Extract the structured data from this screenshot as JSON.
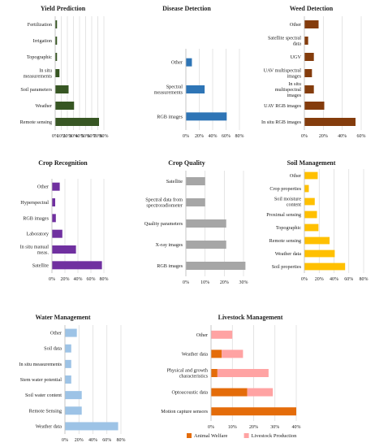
{
  "chart_data": [
    {
      "type": "bar",
      "title": "Yield Prediction",
      "categories": [
        "Fertilization",
        "Irrigation",
        "Topographic",
        "In situ measurements",
        "Soil parameters",
        "Weather",
        "Remote sensing"
      ],
      "values": [
        3,
        3,
        3,
        7,
        22,
        31,
        72
      ],
      "xlim": [
        0,
        80
      ],
      "ticks": [
        "0%",
        "10%",
        "20%",
        "30%",
        "40%",
        "50%",
        "60%",
        "70%",
        "80%"
      ],
      "orientation": "horizontal",
      "color": "#375623"
    },
    {
      "type": "bar",
      "title": "Disease Detection",
      "categories": [
        "Other",
        "Spectral measurements",
        "RGB images"
      ],
      "values": [
        9,
        28,
        61
      ],
      "xlim": [
        0,
        80
      ],
      "ticks": [
        "0%",
        "20%",
        "40%",
        "60%",
        "80%"
      ],
      "orientation": "horizontal",
      "color": "#2e75b6"
    },
    {
      "type": "bar",
      "title": "Weed Detection",
      "categories": [
        "Other",
        "Satellite spectral data",
        "UGV",
        "UAV multispectral images",
        "In situ  multispectral images",
        "UAV RGB images",
        "In situ RGB images"
      ],
      "values": [
        15,
        4,
        10,
        8,
        10,
        21,
        54
      ],
      "xlim": [
        0,
        60
      ],
      "ticks": [
        "0%",
        "20%",
        "40%",
        "60%"
      ],
      "orientation": "horizontal",
      "color": "#843c0c"
    },
    {
      "type": "bar",
      "title": "Crop Recognition",
      "categories": [
        "Other",
        "Hyperspectral",
        "RGB images",
        "Laboratory",
        "In situ manual meas.",
        "Satellite"
      ],
      "values": [
        12,
        5,
        6,
        16,
        37,
        77
      ],
      "xlim": [
        0,
        80
      ],
      "ticks": [
        "0%",
        "20%",
        "40%",
        "60%",
        "80%"
      ],
      "orientation": "horizontal",
      "color": "#7030a0"
    },
    {
      "type": "bar",
      "title": "Crop Quality",
      "categories": [
        "Satellite",
        "Spectral data from spectroradiometer",
        "Quality parameters",
        "X-ray images",
        "RGB images"
      ],
      "values": [
        10,
        10,
        21,
        21,
        31
      ],
      "xlim": [
        0,
        30
      ],
      "ticks": [
        "0%",
        "10%",
        "20%",
        "30%"
      ],
      "orientation": "horizontal",
      "color": "#a6a6a6"
    },
    {
      "type": "bar",
      "title": "Soil Management",
      "categories": [
        "Other",
        "Crop properties",
        "Soil moisture content",
        "Proximal sensing",
        "Topographic",
        "Remote sensing",
        "Weather data",
        "Soil properties"
      ],
      "values": [
        18,
        6,
        14,
        17,
        19,
        34,
        41,
        55
      ],
      "xlim": [
        0,
        80
      ],
      "ticks": [
        "0%",
        "20%",
        "40%",
        "60%",
        "80%"
      ],
      "orientation": "horizontal",
      "color": "#ffc000"
    },
    {
      "type": "bar",
      "title": "Water Management",
      "categories": [
        "Other",
        "Soil data",
        "In situ measurements",
        "Stem water potential",
        "Soil water content",
        "Remote Sensing",
        "Weather data"
      ],
      "values": [
        17,
        9,
        9,
        9,
        24,
        24,
        76
      ],
      "xlim": [
        0,
        80
      ],
      "ticks": [
        "0%",
        "20%",
        "40%",
        "60%",
        "80%"
      ],
      "orientation": "horizontal",
      "color": "#9dc3e6"
    },
    {
      "type": "bar",
      "stacked": true,
      "title": "Livestock Management",
      "categories": [
        "Other",
        "Weather data",
        "Physical and growth characteristics",
        "Optoacoustic data",
        "Motion capture sensors"
      ],
      "series": [
        {
          "name": "Animal Welfare",
          "values": [
            0,
            5,
            3,
            17,
            40
          ],
          "color": "#e46c0a"
        },
        {
          "name": "Livestock Production",
          "values": [
            10,
            10,
            24,
            12,
            0
          ],
          "color": "#ffa3a3"
        }
      ],
      "xlim": [
        0,
        40
      ],
      "ticks": [
        "0%",
        "10%",
        "20%",
        "30%",
        "40%"
      ],
      "orientation": "horizontal",
      "legend": "bottom"
    }
  ]
}
